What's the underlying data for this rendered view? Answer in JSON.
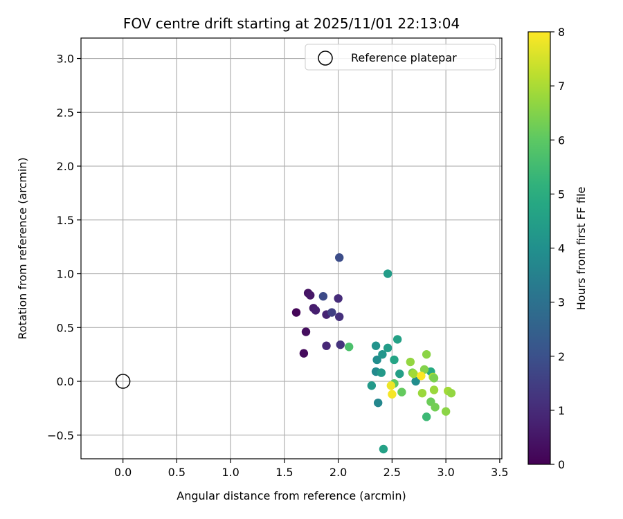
{
  "chart_data": {
    "type": "scatter",
    "title": "FOV centre drift starting at 2025/11/01 22:13:04",
    "xlabel": "Angular distance from reference (arcmin)",
    "ylabel": "Rotation from reference (arcmin)",
    "xlim": [
      -0.39,
      3.52
    ],
    "ylim": [
      -0.72,
      3.19
    ],
    "xticks": [
      0.0,
      0.5,
      1.0,
      1.5,
      2.0,
      2.5,
      3.0,
      3.5
    ],
    "xtick_labels": [
      "0.0",
      "0.5",
      "1.0",
      "1.5",
      "2.0",
      "2.5",
      "3.0",
      "3.5"
    ],
    "yticks": [
      -0.5,
      0.0,
      0.5,
      1.0,
      1.5,
      2.0,
      2.5,
      3.0
    ],
    "ytick_labels": [
      "−0.5",
      "0.0",
      "0.5",
      "1.0",
      "1.5",
      "2.0",
      "2.5",
      "3.0"
    ],
    "grid": true,
    "legend": {
      "location": "top-right",
      "entries": [
        "Reference platepar"
      ]
    },
    "reference_point": {
      "x": 0.0,
      "y": 0.0,
      "label": "Reference platepar"
    },
    "colorbar": {
      "label": "Hours from first FF file",
      "range": [
        0,
        8
      ],
      "ticks": [
        0,
        1,
        2,
        3,
        4,
        5,
        6,
        7,
        8
      ],
      "tick_labels": [
        "0",
        "1",
        "2",
        "3",
        "4",
        "5",
        "6",
        "7",
        "8"
      ],
      "colormap": "viridis"
    },
    "points": [
      {
        "x": 1.61,
        "y": 0.64,
        "t": 0.1
      },
      {
        "x": 1.68,
        "y": 0.26,
        "t": 0.2
      },
      {
        "x": 1.7,
        "y": 0.46,
        "t": 0.3
      },
      {
        "x": 1.72,
        "y": 0.82,
        "t": 0.4
      },
      {
        "x": 1.74,
        "y": 0.8,
        "t": 0.5
      },
      {
        "x": 1.77,
        "y": 0.68,
        "t": 0.6
      },
      {
        "x": 1.79,
        "y": 0.66,
        "t": 0.7
      },
      {
        "x": 1.89,
        "y": 0.62,
        "t": 0.8
      },
      {
        "x": 1.89,
        "y": 0.33,
        "t": 0.9
      },
      {
        "x": 2.0,
        "y": 0.77,
        "t": 1.0
      },
      {
        "x": 2.01,
        "y": 0.6,
        "t": 1.1
      },
      {
        "x": 2.02,
        "y": 0.34,
        "t": 1.2
      },
      {
        "x": 1.94,
        "y": 0.64,
        "t": 1.5
      },
      {
        "x": 1.86,
        "y": 0.79,
        "t": 1.8
      },
      {
        "x": 2.01,
        "y": 1.15,
        "t": 1.9
      },
      {
        "x": 2.46,
        "y": 1.0,
        "t": 4.4
      },
      {
        "x": 2.1,
        "y": 0.32,
        "t": 5.7
      },
      {
        "x": 2.35,
        "y": 0.33,
        "t": 4.1
      },
      {
        "x": 2.55,
        "y": 0.39,
        "t": 4.6
      },
      {
        "x": 2.36,
        "y": 0.2,
        "t": 3.9
      },
      {
        "x": 2.41,
        "y": 0.25,
        "t": 4.2
      },
      {
        "x": 2.46,
        "y": 0.31,
        "t": 4.4
      },
      {
        "x": 2.52,
        "y": 0.2,
        "t": 4.7
      },
      {
        "x": 2.35,
        "y": 0.09,
        "t": 3.8
      },
      {
        "x": 2.4,
        "y": 0.08,
        "t": 4.3
      },
      {
        "x": 2.57,
        "y": 0.07,
        "t": 4.5
      },
      {
        "x": 2.31,
        "y": -0.04,
        "t": 4.3
      },
      {
        "x": 2.37,
        "y": -0.2,
        "t": 3.7
      },
      {
        "x": 2.42,
        "y": -0.63,
        "t": 4.6
      },
      {
        "x": 2.72,
        "y": 0.0,
        "t": 3.9
      },
      {
        "x": 2.86,
        "y": 0.09,
        "t": 4.9
      },
      {
        "x": 2.82,
        "y": -0.33,
        "t": 5.4
      },
      {
        "x": 2.52,
        "y": -0.02,
        "t": 6.0
      },
      {
        "x": 2.59,
        "y": -0.1,
        "t": 6.1
      },
      {
        "x": 2.67,
        "y": 0.18,
        "t": 6.7
      },
      {
        "x": 2.69,
        "y": 0.08,
        "t": 6.3
      },
      {
        "x": 2.7,
        "y": 0.07,
        "t": 6.9
      },
      {
        "x": 2.78,
        "y": -0.11,
        "t": 6.8
      },
      {
        "x": 2.8,
        "y": 0.11,
        "t": 6.5
      },
      {
        "x": 2.82,
        "y": 0.25,
        "t": 6.6
      },
      {
        "x": 2.86,
        "y": -0.19,
        "t": 6.2
      },
      {
        "x": 2.88,
        "y": 0.04,
        "t": 7.0
      },
      {
        "x": 2.89,
        "y": 0.03,
        "t": 6.4
      },
      {
        "x": 2.89,
        "y": -0.08,
        "t": 6.8
      },
      {
        "x": 2.9,
        "y": -0.24,
        "t": 6.3
      },
      {
        "x": 3.0,
        "y": -0.28,
        "t": 6.6
      },
      {
        "x": 3.02,
        "y": -0.09,
        "t": 6.9
      },
      {
        "x": 3.05,
        "y": -0.11,
        "t": 6.7
      },
      {
        "x": 2.49,
        "y": -0.04,
        "t": 7.8
      },
      {
        "x": 2.5,
        "y": -0.12,
        "t": 7.9
      },
      {
        "x": 2.77,
        "y": 0.05,
        "t": 8.0
      }
    ]
  }
}
